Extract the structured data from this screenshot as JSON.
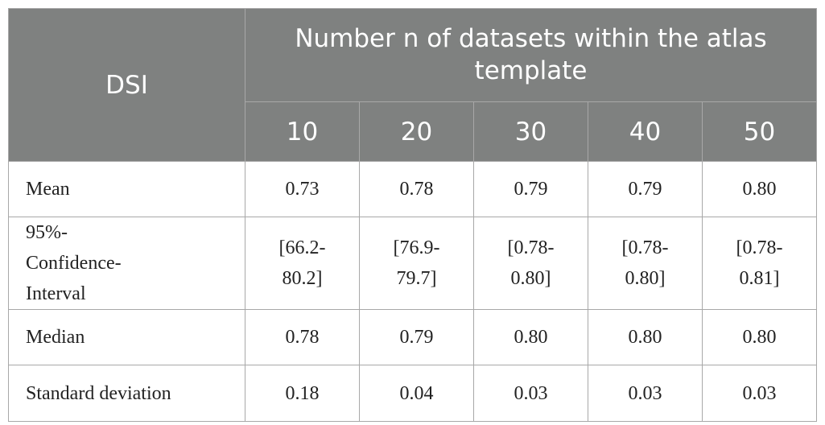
{
  "table": {
    "row_header": "DSI",
    "group_header": "Number n of datasets within the atlas template",
    "columns": [
      "10",
      "20",
      "30",
      "40",
      "50"
    ],
    "rows": [
      {
        "label": "Mean",
        "values": [
          "0.73",
          "0.78",
          "0.79",
          "0.79",
          "0.80"
        ]
      },
      {
        "label": "95%-Confidence-Interval",
        "values": [
          "[66.2-80.2]",
          "[76.9-79.7]",
          "[0.78-0.80]",
          "[0.78-0.80]",
          "[0.78-0.81]"
        ]
      },
      {
        "label": "Median",
        "values": [
          "0.78",
          "0.79",
          "0.80",
          "0.80",
          "0.80"
        ]
      },
      {
        "label": "Standard deviation",
        "values": [
          "0.18",
          "0.04",
          "0.03",
          "0.03",
          "0.03"
        ]
      }
    ]
  },
  "colors": {
    "header_background": "#7f8180",
    "header_text": "#ffffff",
    "border": "#a8a8a8",
    "body_text": "#222222"
  }
}
